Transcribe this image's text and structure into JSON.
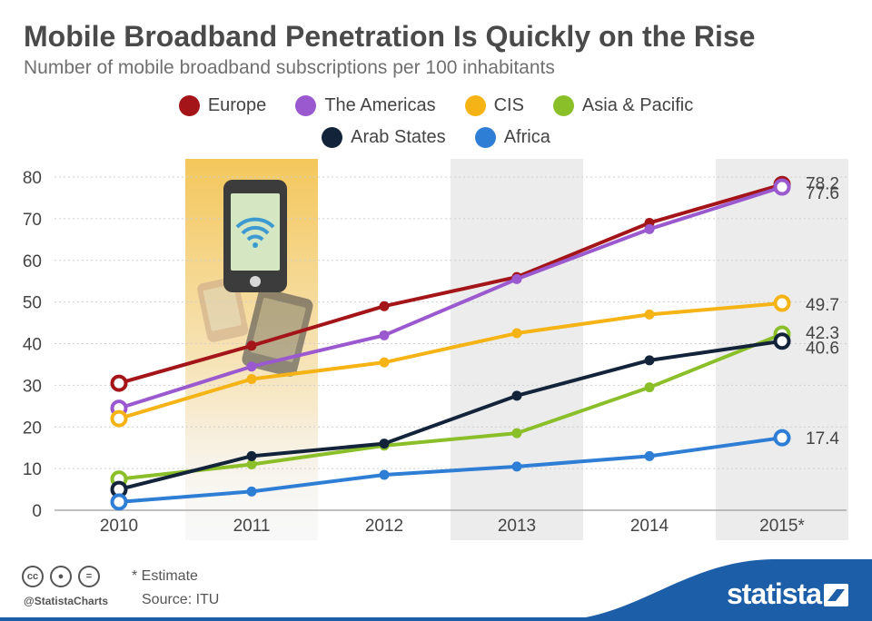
{
  "title": "Mobile Broadband Penetration Is Quickly on the Rise",
  "subtitle": "Number of mobile broadband subscriptions per 100 inhabitants",
  "legend": [
    {
      "label": "Europe",
      "color": "#a31519"
    },
    {
      "label": "The Americas",
      "color": "#9b59d0"
    },
    {
      "label": "CIS",
      "color": "#f5b315"
    },
    {
      "label": "Asia & Pacific",
      "color": "#8bbf2a"
    },
    {
      "label": "Arab States",
      "color": "#13243a"
    },
    {
      "label": "Africa",
      "color": "#2e7ed5"
    }
  ],
  "chart_data": {
    "type": "line",
    "title": "Mobile Broadband Penetration Is Quickly on the Rise",
    "ylabel": "Number of mobile broadband subscriptions per 100 inhabitants",
    "xlabel": "",
    "categories": [
      "2010",
      "2011",
      "2012",
      "2013",
      "2014",
      "2015*"
    ],
    "ylim": [
      0,
      80
    ],
    "yticks": [
      0,
      10,
      20,
      30,
      40,
      50,
      60,
      70,
      80
    ],
    "grid": true,
    "series": [
      {
        "name": "Europe",
        "color": "#a31519",
        "values": [
          30.5,
          39.5,
          49,
          56,
          69,
          78.2
        ]
      },
      {
        "name": "The Americas",
        "color": "#9b59d0",
        "values": [
          24.5,
          34.5,
          42,
          55.5,
          67.5,
          77.6
        ]
      },
      {
        "name": "CIS",
        "color": "#f5b315",
        "values": [
          22,
          31.5,
          35.5,
          42.5,
          47,
          49.7
        ]
      },
      {
        "name": "Asia & Pacific",
        "color": "#8bbf2a",
        "values": [
          7.5,
          11,
          15.5,
          18.5,
          29.5,
          42.3
        ]
      },
      {
        "name": "Arab States",
        "color": "#13243a",
        "values": [
          5,
          13,
          16,
          27.5,
          36,
          40.6
        ]
      },
      {
        "name": "Africa",
        "color": "#2e7ed5",
        "values": [
          2,
          4.5,
          8.5,
          10.5,
          13,
          17.4
        ]
      }
    ],
    "end_labels": [
      "78.2",
      "77.6",
      "49.7",
      "42.3",
      "40.6",
      "17.4"
    ]
  },
  "footer": {
    "handle": "@StatistaCharts",
    "estimate_note": "* Estimate",
    "source": "Source: ITU",
    "brand": "statista",
    "cc_icons": [
      "cc-icon",
      "by-icon",
      "nd-icon"
    ],
    "brand_color": "#1c5ea8"
  }
}
